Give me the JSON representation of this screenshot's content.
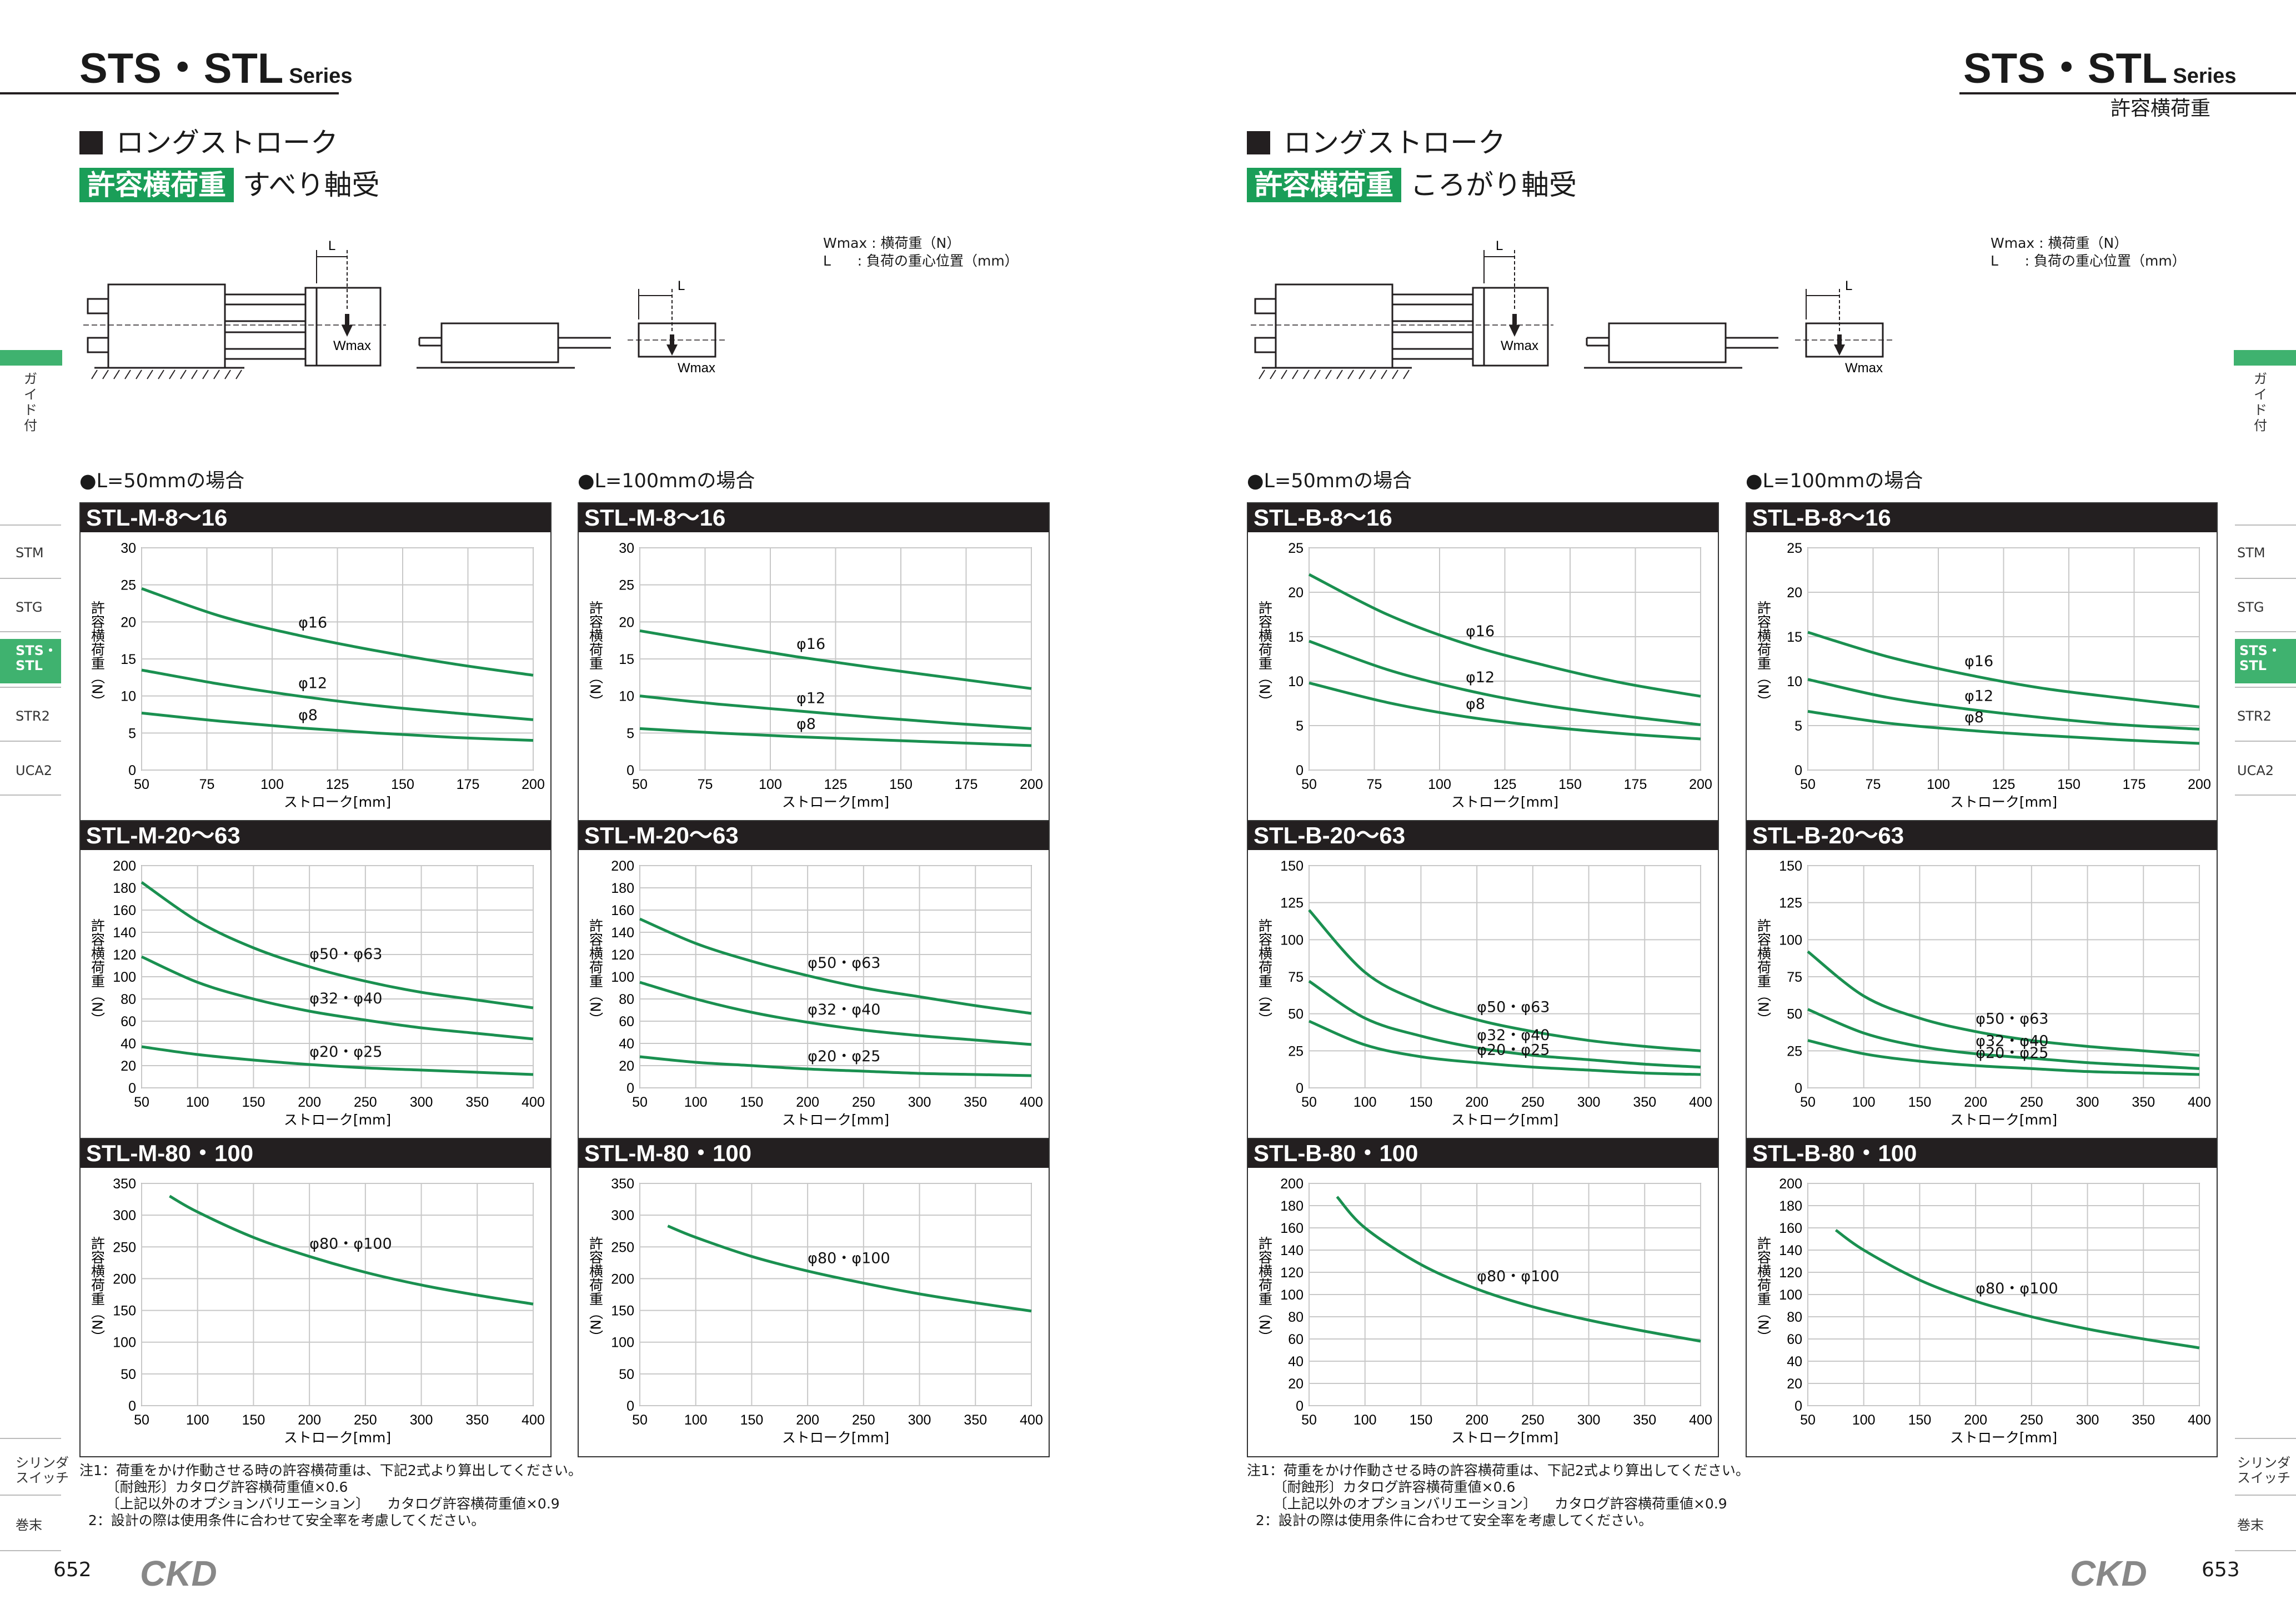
{
  "header": {
    "series_main": "STS・STL",
    "series_small": "Series",
    "right_subtitle": "許容横荷重"
  },
  "section": {
    "title": "ロングストローク",
    "tag": "許容横荷重",
    "left_bearing": "すべり軸受",
    "right_bearing": "ころがり軸受"
  },
  "diagram_legend": "Wmax : 横荷重（N）\nL      : 負荷の重心位置（mm）",
  "diagram_labels": {
    "L": "L",
    "Wmax": "Wmax"
  },
  "cases": {
    "l50": "●L=50mmの場合",
    "l100": "●L=100mmの場合"
  },
  "axis": {
    "ylabel": "許容横荷重（N）",
    "xlabel": "ストローク[mm]"
  },
  "notes": "注1：荷重をかけ作動させる時の許容横荷重は、下記2式より算出してください。\n      〔耐蝕形〕カタログ許容横荷重値×0.6\n      〔上記以外のオプションバリエーション〕    カタログ許容横荷重値×0.9\n  2：設計の際は使用条件に合わせて安全率を考慮してください。",
  "side_tabs": [
    "STM",
    "STG",
    "STS・\nSTL",
    "STR2",
    "UCA2"
  ],
  "side_vertical": "ガイド付",
  "side_bottom": [
    "シリンダ\nスイッチ",
    "巻末"
  ],
  "pages": {
    "left": "652",
    "right": "653"
  },
  "logo": "CKD",
  "colors": {
    "line": "#1a9050",
    "accent": "#3fb26f",
    "titlebar": "#231f20"
  },
  "chart_data": [
    {
      "id": "m816_50",
      "title": "STL-M-8〜16",
      "type": "line",
      "xlim": [
        50,
        200
      ],
      "ylim": [
        0,
        30
      ],
      "xticks": [
        50,
        75,
        100,
        125,
        150,
        175,
        200
      ],
      "yticks": [
        0,
        5,
        10,
        15,
        20,
        25,
        30
      ],
      "xlabel": "ストローク[mm]",
      "ylabel": "許容横荷重（N）",
      "series": [
        {
          "name": "φ16",
          "x": [
            50,
            80,
            110,
            140,
            170,
            200
          ],
          "y": [
            24.5,
            20.8,
            18.2,
            16.1,
            14.3,
            12.8
          ]
        },
        {
          "name": "φ12",
          "x": [
            50,
            80,
            110,
            140,
            170,
            200
          ],
          "y": [
            13.5,
            11.6,
            10.0,
            8.7,
            7.7,
            6.8
          ]
        },
        {
          "name": "φ8",
          "x": [
            50,
            80,
            110,
            140,
            170,
            200
          ],
          "y": [
            7.7,
            6.6,
            5.7,
            5.0,
            4.4,
            4.0
          ]
        }
      ]
    },
    {
      "id": "m816_100",
      "title": "STL-M-8〜16",
      "type": "line",
      "xlim": [
        50,
        200
      ],
      "ylim": [
        0,
        30
      ],
      "xticks": [
        50,
        75,
        100,
        125,
        150,
        175,
        200
      ],
      "yticks": [
        0,
        5,
        10,
        15,
        20,
        25,
        30
      ],
      "xlabel": "ストローク[mm]",
      "ylabel": "許容横荷重（N）",
      "series": [
        {
          "name": "φ16",
          "x": [
            50,
            80,
            110,
            140,
            170,
            200
          ],
          "y": [
            18.8,
            17.0,
            15.3,
            13.8,
            12.4,
            11.0
          ]
        },
        {
          "name": "φ12",
          "x": [
            50,
            80,
            110,
            140,
            170,
            200
          ],
          "y": [
            10.0,
            8.9,
            8.0,
            7.1,
            6.3,
            5.6
          ]
        },
        {
          "name": "φ8",
          "x": [
            50,
            80,
            110,
            140,
            170,
            200
          ],
          "y": [
            5.6,
            5.0,
            4.5,
            4.1,
            3.7,
            3.3
          ]
        }
      ]
    },
    {
      "id": "m2063_50",
      "title": "STL-M-20〜63",
      "type": "line",
      "xlim": [
        50,
        400
      ],
      "ylim": [
        0,
        200
      ],
      "xticks": [
        50,
        100,
        150,
        200,
        250,
        300,
        350,
        400
      ],
      "yticks": [
        0,
        20,
        40,
        60,
        80,
        100,
        120,
        140,
        160,
        180,
        200
      ],
      "xlabel": "ストローク[mm]",
      "ylabel": "許容横荷重（N）",
      "series": [
        {
          "name": "φ50・φ63",
          "x": [
            50,
            100,
            150,
            200,
            250,
            300,
            350,
            400
          ],
          "y": [
            185,
            150,
            126,
            109,
            96,
            86,
            79,
            72
          ]
        },
        {
          "name": "φ32・φ40",
          "x": [
            50,
            100,
            150,
            200,
            250,
            300,
            350,
            400
          ],
          "y": [
            118,
            95,
            80,
            69,
            61,
            54,
            49,
            44
          ]
        },
        {
          "name": "φ20・φ25",
          "x": [
            50,
            100,
            150,
            200,
            250,
            300,
            350,
            400
          ],
          "y": [
            37,
            30,
            25,
            21,
            18,
            16,
            14,
            12
          ]
        }
      ]
    },
    {
      "id": "m2063_100",
      "title": "STL-M-20〜63",
      "type": "line",
      "xlim": [
        50,
        400
      ],
      "ylim": [
        0,
        200
      ],
      "xticks": [
        50,
        100,
        150,
        200,
        250,
        300,
        350,
        400
      ],
      "yticks": [
        0,
        20,
        40,
        60,
        80,
        100,
        120,
        140,
        160,
        180,
        200
      ],
      "xlabel": "ストローク[mm]",
      "ylabel": "許容横荷重（N）",
      "series": [
        {
          "name": "φ50・φ63",
          "x": [
            50,
            100,
            150,
            200,
            250,
            300,
            350,
            400
          ],
          "y": [
            152,
            130,
            114,
            101,
            90,
            82,
            74,
            67
          ]
        },
        {
          "name": "φ32・φ40",
          "x": [
            50,
            100,
            150,
            200,
            250,
            300,
            350,
            400
          ],
          "y": [
            95,
            80,
            68,
            59,
            52,
            47,
            43,
            39
          ]
        },
        {
          "name": "φ20・φ25",
          "x": [
            50,
            100,
            150,
            200,
            250,
            300,
            350,
            400
          ],
          "y": [
            28,
            23,
            20,
            17,
            15,
            13,
            12,
            11
          ]
        }
      ]
    },
    {
      "id": "m80_50",
      "title": "STL-M-80・100",
      "type": "line",
      "xlim": [
        50,
        400
      ],
      "ylim": [
        0,
        350
      ],
      "xticks": [
        50,
        100,
        150,
        200,
        250,
        300,
        350,
        400
      ],
      "yticks": [
        0,
        50,
        100,
        150,
        200,
        250,
        300,
        350
      ],
      "xlabel": "ストローク[mm]",
      "ylabel": "許容横荷重（N）",
      "series": [
        {
          "name": "φ80・φ100",
          "x": [
            75,
            100,
            150,
            200,
            250,
            300,
            350,
            400
          ],
          "y": [
            330,
            305,
            265,
            235,
            210,
            190,
            174,
            160
          ]
        }
      ]
    },
    {
      "id": "m80_100",
      "title": "STL-M-80・100",
      "type": "line",
      "xlim": [
        50,
        400
      ],
      "ylim": [
        0,
        350
      ],
      "xticks": [
        50,
        100,
        150,
        200,
        250,
        300,
        350,
        400
      ],
      "yticks": [
        0,
        50,
        100,
        150,
        200,
        250,
        300,
        350
      ],
      "xlabel": "ストローク[mm]",
      "ylabel": "許容横荷重（N）",
      "series": [
        {
          "name": "φ80・φ100",
          "x": [
            75,
            100,
            150,
            200,
            250,
            300,
            350,
            400
          ],
          "y": [
            283,
            265,
            235,
            212,
            193,
            176,
            162,
            149
          ]
        }
      ]
    },
    {
      "id": "b816_50",
      "title": "STL-B-8〜16",
      "type": "line",
      "xlim": [
        50,
        200
      ],
      "ylim": [
        0,
        25
      ],
      "xticks": [
        50,
        75,
        100,
        125,
        150,
        175,
        200
      ],
      "yticks": [
        0,
        5,
        10,
        15,
        20,
        25
      ],
      "xlabel": "ストローク[mm]",
      "ylabel": "許容横荷重（N）",
      "series": [
        {
          "name": "φ16",
          "x": [
            50,
            80,
            110,
            140,
            170,
            200
          ],
          "y": [
            22,
            17.5,
            14.2,
            11.8,
            9.8,
            8.3
          ]
        },
        {
          "name": "φ12",
          "x": [
            50,
            80,
            110,
            140,
            170,
            200
          ],
          "y": [
            14.5,
            11.3,
            9.0,
            7.3,
            6.1,
            5.1
          ]
        },
        {
          "name": "φ8",
          "x": [
            50,
            80,
            110,
            140,
            170,
            200
          ],
          "y": [
            9.8,
            7.6,
            6.0,
            4.9,
            4.1,
            3.5
          ]
        }
      ]
    },
    {
      "id": "b816_100",
      "title": "STL-B-8〜16",
      "type": "line",
      "xlim": [
        50,
        200
      ],
      "ylim": [
        0,
        25
      ],
      "xticks": [
        50,
        75,
        100,
        125,
        150,
        175,
        200
      ],
      "yticks": [
        0,
        5,
        10,
        15,
        20,
        25
      ],
      "xlabel": "ストローク[mm]",
      "ylabel": "許容横荷重（N）",
      "series": [
        {
          "name": "φ16",
          "x": [
            50,
            80,
            110,
            140,
            170,
            200
          ],
          "y": [
            15.5,
            12.8,
            10.8,
            9.2,
            8.1,
            7.1
          ]
        },
        {
          "name": "φ12",
          "x": [
            50,
            80,
            110,
            140,
            170,
            200
          ],
          "y": [
            10.2,
            8.2,
            6.9,
            5.9,
            5.1,
            4.6
          ]
        },
        {
          "name": "φ8",
          "x": [
            50,
            80,
            110,
            140,
            170,
            200
          ],
          "y": [
            6.6,
            5.3,
            4.5,
            3.9,
            3.4,
            3.0
          ]
        }
      ]
    },
    {
      "id": "b2063_50",
      "title": "STL-B-20〜63",
      "type": "line",
      "xlim": [
        50,
        400
      ],
      "ylim": [
        0,
        150
      ],
      "xticks": [
        50,
        100,
        150,
        200,
        250,
        300,
        350,
        400
      ],
      "yticks": [
        0,
        25,
        50,
        75,
        100,
        125,
        150
      ],
      "xlabel": "ストローク[mm]",
      "ylabel": "許容横荷重（N）",
      "series": [
        {
          "name": "φ50・φ63",
          "x": [
            50,
            100,
            150,
            200,
            250,
            300,
            350,
            400
          ],
          "y": [
            120,
            78,
            58,
            46,
            38,
            32,
            28,
            25
          ]
        },
        {
          "name": "φ32・φ40",
          "x": [
            50,
            100,
            150,
            200,
            250,
            300,
            350,
            400
          ],
          "y": [
            72,
            47,
            35,
            27,
            22,
            19,
            16,
            14
          ]
        },
        {
          "name": "φ20・φ25",
          "x": [
            50,
            100,
            150,
            200,
            250,
            300,
            350,
            400
          ],
          "y": [
            45,
            29,
            21,
            17,
            14,
            12,
            10,
            9
          ]
        }
      ]
    },
    {
      "id": "b2063_100",
      "title": "STL-B-20〜63",
      "type": "line",
      "xlim": [
        50,
        400
      ],
      "ylim": [
        0,
        150
      ],
      "xticks": [
        50,
        100,
        150,
        200,
        250,
        300,
        350,
        400
      ],
      "yticks": [
        0,
        25,
        50,
        75,
        100,
        125,
        150
      ],
      "xlabel": "ストローク[mm]",
      "ylabel": "許容横荷重（N）",
      "series": [
        {
          "name": "φ50・φ63",
          "x": [
            50,
            100,
            150,
            200,
            250,
            300,
            350,
            400
          ],
          "y": [
            92,
            62,
            47,
            38,
            32,
            28,
            25,
            22
          ]
        },
        {
          "name": "φ32・φ40",
          "x": [
            50,
            100,
            150,
            200,
            250,
            300,
            350,
            400
          ],
          "y": [
            53,
            37,
            28,
            23,
            20,
            17,
            15,
            13
          ]
        },
        {
          "name": "φ20・φ25",
          "x": [
            50,
            100,
            150,
            200,
            250,
            300,
            350,
            400
          ],
          "y": [
            32,
            23,
            18,
            15,
            13,
            11,
            10,
            9
          ]
        }
      ]
    },
    {
      "id": "b80_50",
      "title": "STL-B-80・100",
      "type": "line",
      "xlim": [
        50,
        400
      ],
      "ylim": [
        0,
        200
      ],
      "xticks": [
        50,
        100,
        150,
        200,
        250,
        300,
        350,
        400
      ],
      "yticks": [
        0,
        20,
        40,
        60,
        80,
        100,
        120,
        140,
        160,
        180,
        200
      ],
      "xlabel": "ストローク[mm]",
      "ylabel": "許容横荷重（N）",
      "series": [
        {
          "name": "φ80・φ100",
          "x": [
            75,
            100,
            150,
            200,
            250,
            300,
            350,
            400
          ],
          "y": [
            188,
            160,
            127,
            105,
            89,
            77,
            67,
            58
          ]
        }
      ]
    },
    {
      "id": "b80_100",
      "title": "STL-B-80・100",
      "type": "line",
      "xlim": [
        50,
        400
      ],
      "ylim": [
        0,
        200
      ],
      "xticks": [
        50,
        100,
        150,
        200,
        250,
        300,
        350,
        400
      ],
      "yticks": [
        0,
        20,
        40,
        60,
        80,
        100,
        120,
        140,
        160,
        180,
        200
      ],
      "xlabel": "ストローク[mm]",
      "ylabel": "許容横荷重（N）",
      "series": [
        {
          "name": "φ80・φ100",
          "x": [
            75,
            100,
            150,
            200,
            250,
            300,
            350,
            400
          ],
          "y": [
            158,
            140,
            113,
            94,
            80,
            69,
            60,
            52
          ]
        }
      ]
    }
  ]
}
